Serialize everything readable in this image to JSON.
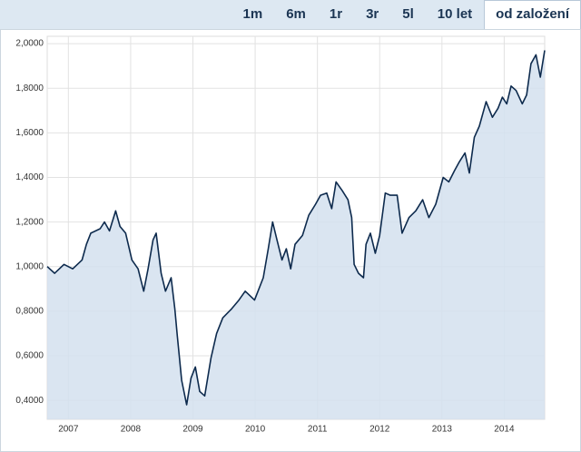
{
  "tabs": [
    "1m",
    "6m",
    "1r",
    "3r",
    "5l",
    "10 let",
    "od založení"
  ],
  "active_tab": 6,
  "chart_data": {
    "type": "line",
    "x": [
      2006.66,
      2006.78,
      2006.93,
      2007.07,
      2007.22,
      2007.29,
      2007.36,
      2007.51,
      2007.58,
      2007.66,
      2007.76,
      2007.83,
      2007.92,
      2008.02,
      2008.12,
      2008.21,
      2008.28,
      2008.36,
      2008.41,
      2008.49,
      2008.56,
      2008.65,
      2008.71,
      2008.75,
      2008.82,
      2008.9,
      2008.97,
      2009.04,
      2009.11,
      2009.19,
      2009.29,
      2009.38,
      2009.48,
      2009.62,
      2009.74,
      2009.84,
      2009.99,
      2010.13,
      2010.21,
      2010.28,
      2010.35,
      2010.43,
      2010.5,
      2010.57,
      2010.64,
      2010.76,
      2010.86,
      2010.97,
      2011.05,
      2011.15,
      2011.23,
      2011.3,
      2011.4,
      2011.49,
      2011.55,
      2011.59,
      2011.66,
      2011.74,
      2011.78,
      2011.85,
      2011.93,
      2012.0,
      2012.09,
      2012.17,
      2012.28,
      2012.36,
      2012.47,
      2012.58,
      2012.69,
      2012.79,
      2012.9,
      2013.02,
      2013.11,
      2013.2,
      2013.28,
      2013.37,
      2013.44,
      2013.52,
      2013.6,
      2013.71,
      2013.81,
      2013.9,
      2013.97,
      2014.04,
      2014.11,
      2014.19,
      2014.29,
      2014.36,
      2014.43,
      2014.51,
      2014.58,
      2014.65
    ],
    "series": [
      {
        "color": "#0d2a4d",
        "fill": "#d3e1ee",
        "values": [
          1.0,
          0.97,
          1.01,
          0.99,
          1.03,
          1.1,
          1.15,
          1.17,
          1.2,
          1.16,
          1.25,
          1.18,
          1.15,
          1.03,
          0.99,
          0.89,
          0.99,
          1.12,
          1.15,
          0.97,
          0.89,
          0.95,
          0.81,
          0.69,
          0.49,
          0.38,
          0.5,
          0.55,
          0.44,
          0.42,
          0.59,
          0.7,
          0.77,
          0.81,
          0.85,
          0.89,
          0.85,
          0.95,
          1.08,
          1.2,
          1.12,
          1.03,
          1.08,
          0.99,
          1.1,
          1.14,
          1.23,
          1.28,
          1.32,
          1.33,
          1.26,
          1.38,
          1.34,
          1.3,
          1.22,
          1.01,
          0.97,
          0.95,
          1.1,
          1.15,
          1.06,
          1.14,
          1.33,
          1.32,
          1.32,
          1.15,
          1.22,
          1.25,
          1.3,
          1.22,
          1.28,
          1.4,
          1.38,
          1.43,
          1.47,
          1.51,
          1.42,
          1.58,
          1.63,
          1.74,
          1.67,
          1.71,
          1.76,
          1.73,
          1.81,
          1.79,
          1.73,
          1.77,
          1.91,
          1.95,
          1.85,
          1.97
        ]
      }
    ],
    "xlim": [
      2006.66,
      2014.65
    ],
    "xticks": [
      2007,
      2008,
      2009,
      2010,
      2011,
      2012,
      2013,
      2014
    ],
    "ylim": [
      0.315,
      2.033
    ],
    "yticks": [
      {
        "value": 0.4,
        "label": "0,4000"
      },
      {
        "value": 0.6,
        "label": "0,6000"
      },
      {
        "value": 0.8,
        "label": "0,8000"
      },
      {
        "value": 1.0,
        "label": "1,0000"
      },
      {
        "value": 1.2,
        "label": "1,2000"
      },
      {
        "value": 1.4,
        "label": "1,4000"
      },
      {
        "value": 1.6,
        "label": "1,6000"
      },
      {
        "value": 1.8,
        "label": "1,8000"
      },
      {
        "value": 2.0,
        "label": "2,0000"
      }
    ],
    "grid": true
  }
}
